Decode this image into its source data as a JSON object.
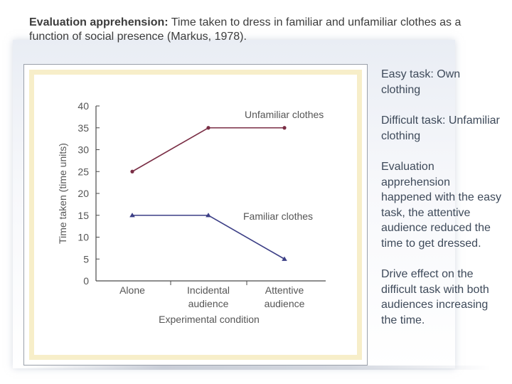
{
  "slide": {
    "title_bold": "Evaluation apprehension:",
    "title_rest": " Time taken to dress in familiar and unfamiliar clothes as a function of social presence (Markus, 1978).",
    "notes": [
      "Easy task: Own clothing",
      "Difficult task: Unfamiliar clothing",
      "Evaluation apprehension happened with the easy task, the attentive audience reduced the time to get dressed.",
      "Drive effect on the difficult task with both audiences increasing the time."
    ]
  },
  "chart_data": {
    "type": "line",
    "categories": [
      "Alone",
      "Incidental audience",
      "Attentive audience"
    ],
    "category_lines": [
      [
        "Alone"
      ],
      [
        "Incidental",
        "audience"
      ],
      [
        "Attentive",
        "audience"
      ]
    ],
    "series": [
      {
        "name": "Unfamiliar clothes",
        "values": [
          25,
          35,
          35
        ],
        "color": "#7a2e45",
        "marker": "circle"
      },
      {
        "name": "Familiar clothes",
        "values": [
          15,
          15,
          5
        ],
        "color": "#3c3f86",
        "marker": "triangle"
      }
    ],
    "yticks": [
      0,
      5,
      10,
      15,
      20,
      25,
      30,
      35,
      40
    ],
    "ylim": [
      0,
      40
    ],
    "xlabel": "Experimental condition",
    "ylabel": "Time taken (time units)",
    "grid": false,
    "legend": "inline labels"
  }
}
